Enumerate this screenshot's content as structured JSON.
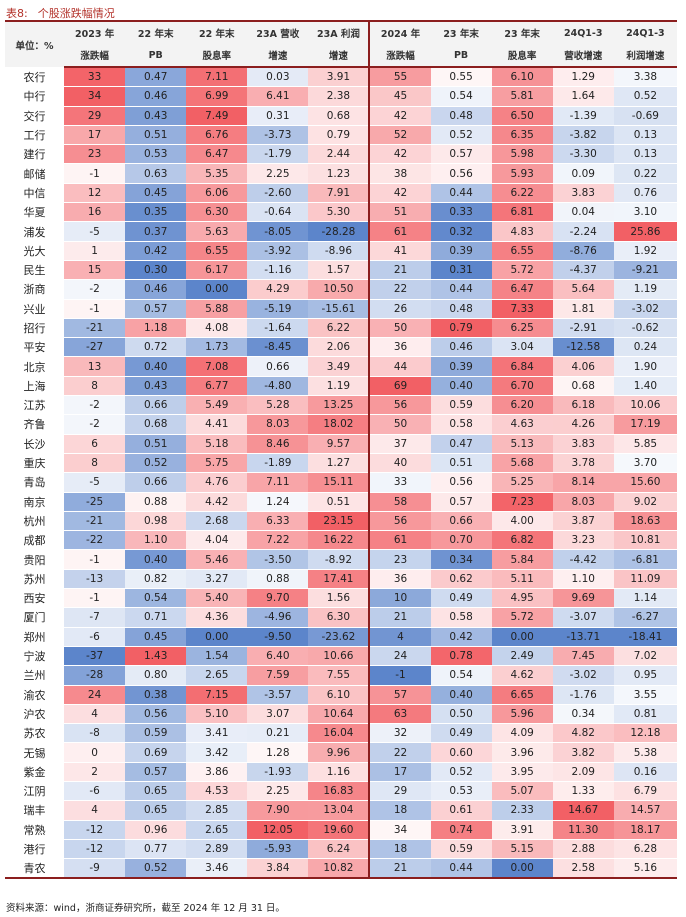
{
  "title": {
    "label": "表8:",
    "text": "个股涨跌幅情况"
  },
  "header": {
    "unit": "单位：%",
    "cols": [
      {
        "l1": "2023 年",
        "l2": "涨跌幅"
      },
      {
        "l1": "22 年末",
        "l2": "PB"
      },
      {
        "l1": "22 年末",
        "l2": "股息率"
      },
      {
        "l1": "23A 营收",
        "l2": "增速"
      },
      {
        "l1": "23A 利润",
        "l2": "增速"
      },
      {
        "l1": "2024 年",
        "l2": "涨跌幅"
      },
      {
        "l1": "23 年末",
        "l2": "PB"
      },
      {
        "l1": "23 年末",
        "l2": "股息率"
      },
      {
        "l1": "24Q1-3",
        "l2": "营收增速"
      },
      {
        "l1": "24Q1-3",
        "l2": "利润增速"
      }
    ]
  },
  "rows": [
    {
      "name": "农行",
      "v": [
        "33",
        "0.47",
        "7.11",
        "0.03",
        "3.91",
        "55",
        "0.55",
        "6.10",
        "1.29",
        "3.38"
      ]
    },
    {
      "name": "中行",
      "v": [
        "34",
        "0.46",
        "6.99",
        "6.41",
        "2.38",
        "45",
        "0.54",
        "5.81",
        "1.64",
        "0.52"
      ]
    },
    {
      "name": "交行",
      "v": [
        "29",
        "0.43",
        "7.49",
        "0.31",
        "0.68",
        "42",
        "0.48",
        "6.50",
        "-1.39",
        "-0.69"
      ]
    },
    {
      "name": "工行",
      "v": [
        "17",
        "0.51",
        "6.76",
        "-3.73",
        "0.79",
        "52",
        "0.52",
        "6.35",
        "-3.82",
        "0.13"
      ]
    },
    {
      "name": "建行",
      "v": [
        "23",
        "0.53",
        "6.47",
        "-1.79",
        "2.44",
        "42",
        "0.57",
        "5.98",
        "-3.30",
        "0.13"
      ]
    },
    {
      "name": "邮储",
      "v": [
        "-1",
        "0.63",
        "5.35",
        "2.25",
        "1.23",
        "38",
        "0.56",
        "5.93",
        "0.09",
        "0.22"
      ]
    },
    {
      "name": "中信",
      "v": [
        "12",
        "0.45",
        "6.06",
        "-2.60",
        "7.91",
        "42",
        "0.44",
        "6.22",
        "3.83",
        "0.76"
      ]
    },
    {
      "name": "华夏",
      "v": [
        "16",
        "0.35",
        "6.30",
        "-0.64",
        "5.30",
        "51",
        "0.33",
        "6.81",
        "0.04",
        "3.10"
      ]
    },
    {
      "name": "浦发",
      "v": [
        "-5",
        "0.37",
        "5.63",
        "-8.05",
        "-28.28",
        "61",
        "0.32",
        "4.83",
        "-2.24",
        "25.86"
      ]
    },
    {
      "name": "光大",
      "v": [
        "1",
        "0.42",
        "6.55",
        "-3.92",
        "-8.96",
        "41",
        "0.39",
        "6.55",
        "-8.76",
        "1.92"
      ]
    },
    {
      "name": "民生",
      "v": [
        "15",
        "0.30",
        "6.17",
        "-1.16",
        "1.57",
        "21",
        "0.31",
        "5.72",
        "-4.37",
        "-9.21"
      ]
    },
    {
      "name": "浙商",
      "v": [
        "-2",
        "0.46",
        "0.00",
        "4.29",
        "10.50",
        "22",
        "0.44",
        "6.47",
        "5.64",
        "1.19"
      ]
    },
    {
      "name": "兴业",
      "v": [
        "-1",
        "0.57",
        "5.88",
        "-5.19",
        "-15.61",
        "26",
        "0.48",
        "7.33",
        "1.81",
        "-3.02"
      ]
    },
    {
      "name": "招行",
      "v": [
        "-21",
        "1.18",
        "4.08",
        "-1.64",
        "6.22",
        "50",
        "0.79",
        "6.25",
        "-2.91",
        "-0.62"
      ]
    },
    {
      "name": "平安",
      "v": [
        "-27",
        "0.72",
        "1.73",
        "-8.45",
        "2.06",
        "36",
        "0.46",
        "3.04",
        "-12.58",
        "0.24"
      ]
    },
    {
      "name": "北京",
      "v": [
        "13",
        "0.40",
        "7.08",
        "0.66",
        "3.49",
        "44",
        "0.39",
        "6.84",
        "4.06",
        "1.90"
      ]
    },
    {
      "name": "上海",
      "v": [
        "8",
        "0.43",
        "6.77",
        "-4.80",
        "1.19",
        "69",
        "0.40",
        "6.70",
        "0.68",
        "1.40"
      ]
    },
    {
      "name": "江苏",
      "v": [
        "-2",
        "0.66",
        "5.49",
        "5.28",
        "13.25",
        "56",
        "0.59",
        "6.20",
        "6.18",
        "10.06"
      ]
    },
    {
      "name": "齐鲁",
      "v": [
        "-2",
        "0.68",
        "4.41",
        "8.03",
        "18.02",
        "50",
        "0.58",
        "4.63",
        "4.26",
        "17.19"
      ]
    },
    {
      "name": "长沙",
      "v": [
        "6",
        "0.51",
        "5.18",
        "8.46",
        "9.57",
        "37",
        "0.47",
        "5.13",
        "3.83",
        "5.85"
      ]
    },
    {
      "name": "重庆",
      "v": [
        "8",
        "0.52",
        "5.75",
        "-1.89",
        "1.27",
        "40",
        "0.51",
        "5.68",
        "3.78",
        "3.70"
      ]
    },
    {
      "name": "青岛",
      "v": [
        "-5",
        "0.66",
        "4.76",
        "7.11",
        "15.11",
        "33",
        "0.56",
        "5.25",
        "8.14",
        "15.60"
      ]
    },
    {
      "name": "南京",
      "v": [
        "-25",
        "0.88",
        "4.42",
        "1.24",
        "0.51",
        "58",
        "0.57",
        "7.23",
        "8.03",
        "9.02"
      ]
    },
    {
      "name": "杭州",
      "v": [
        "-21",
        "0.98",
        "2.68",
        "6.33",
        "23.15",
        "56",
        "0.66",
        "4.00",
        "3.87",
        "18.63"
      ]
    },
    {
      "name": "成都",
      "v": [
        "-22",
        "1.10",
        "4.04",
        "7.22",
        "16.22",
        "61",
        "0.70",
        "6.82",
        "3.23",
        "10.81"
      ]
    },
    {
      "name": "贵阳",
      "v": [
        "-1",
        "0.40",
        "5.46",
        "-3.50",
        "-8.92",
        "23",
        "0.34",
        "5.84",
        "-4.42",
        "-6.81"
      ]
    },
    {
      "name": "苏州",
      "v": [
        "-13",
        "0.82",
        "3.27",
        "0.88",
        "17.41",
        "36",
        "0.62",
        "5.11",
        "1.10",
        "11.09"
      ]
    },
    {
      "name": "西安",
      "v": [
        "-1",
        "0.54",
        "5.40",
        "9.70",
        "1.56",
        "10",
        "0.49",
        "4.95",
        "9.69",
        "1.14"
      ]
    },
    {
      "name": "厦门",
      "v": [
        "-7",
        "0.71",
        "4.36",
        "-4.96",
        "6.30",
        "21",
        "0.58",
        "5.72",
        "-3.07",
        "-6.27"
      ]
    },
    {
      "name": "郑州",
      "v": [
        "-6",
        "0.45",
        "0.00",
        "-9.50",
        "-23.62",
        "4",
        "0.42",
        "0.00",
        "-13.71",
        "-18.41"
      ]
    },
    {
      "name": "宁波",
      "v": [
        "-37",
        "1.43",
        "1.54",
        "6.40",
        "10.66",
        "24",
        "0.78",
        "2.49",
        "7.45",
        "7.02"
      ]
    },
    {
      "name": "兰州",
      "v": [
        "-28",
        "0.80",
        "2.65",
        "7.59",
        "7.55",
        "-1",
        "0.54",
        "4.62",
        "-3.02",
        "0.95"
      ]
    },
    {
      "name": "渝农",
      "v": [
        "24",
        "0.38",
        "7.15",
        "-3.57",
        "6.10",
        "57",
        "0.40",
        "6.65",
        "-1.76",
        "3.55"
      ]
    },
    {
      "name": "沪农",
      "v": [
        "4",
        "0.56",
        "5.10",
        "3.07",
        "10.64",
        "63",
        "0.50",
        "5.96",
        "0.34",
        "0.81"
      ]
    },
    {
      "name": "苏农",
      "v": [
        "-8",
        "0.59",
        "3.41",
        "0.21",
        "16.04",
        "32",
        "0.49",
        "4.09",
        "4.82",
        "12.18"
      ]
    },
    {
      "name": "无锡",
      "v": [
        "0",
        "0.69",
        "3.42",
        "1.28",
        "9.96",
        "22",
        "0.60",
        "3.96",
        "3.82",
        "5.38"
      ]
    },
    {
      "name": "紫金",
      "v": [
        "2",
        "0.57",
        "3.86",
        "-1.93",
        "1.16",
        "17",
        "0.52",
        "3.95",
        "2.09",
        "0.16"
      ]
    },
    {
      "name": "江阴",
      "v": [
        "-6",
        "0.65",
        "4.53",
        "2.25",
        "16.83",
        "29",
        "0.53",
        "5.07",
        "1.33",
        "6.79"
      ]
    },
    {
      "name": "瑞丰",
      "v": [
        "4",
        "0.65",
        "2.85",
        "7.90",
        "13.04",
        "18",
        "0.61",
        "2.33",
        "14.67",
        "14.57"
      ]
    },
    {
      "name": "常熟",
      "v": [
        "-12",
        "0.96",
        "2.65",
        "12.05",
        "19.60",
        "34",
        "0.74",
        "3.91",
        "11.30",
        "18.17"
      ]
    },
    {
      "name": "港行",
      "v": [
        "-12",
        "0.77",
        "2.89",
        "-5.93",
        "6.24",
        "18",
        "0.59",
        "5.15",
        "2.88",
        "6.28"
      ]
    },
    {
      "name": "青农",
      "v": [
        "-9",
        "0.52",
        "3.46",
        "3.84",
        "10.82",
        "21",
        "0.44",
        "0.00",
        "2.58",
        "5.16"
      ]
    }
  ],
  "footnote": "资料来源：wind，浙商证券研究所，截至 2024 年 12 月 31 日。",
  "colors": {
    "red": "#f0444a",
    "blue": "#3f6fc2",
    "accent": "#8b1e1e"
  }
}
